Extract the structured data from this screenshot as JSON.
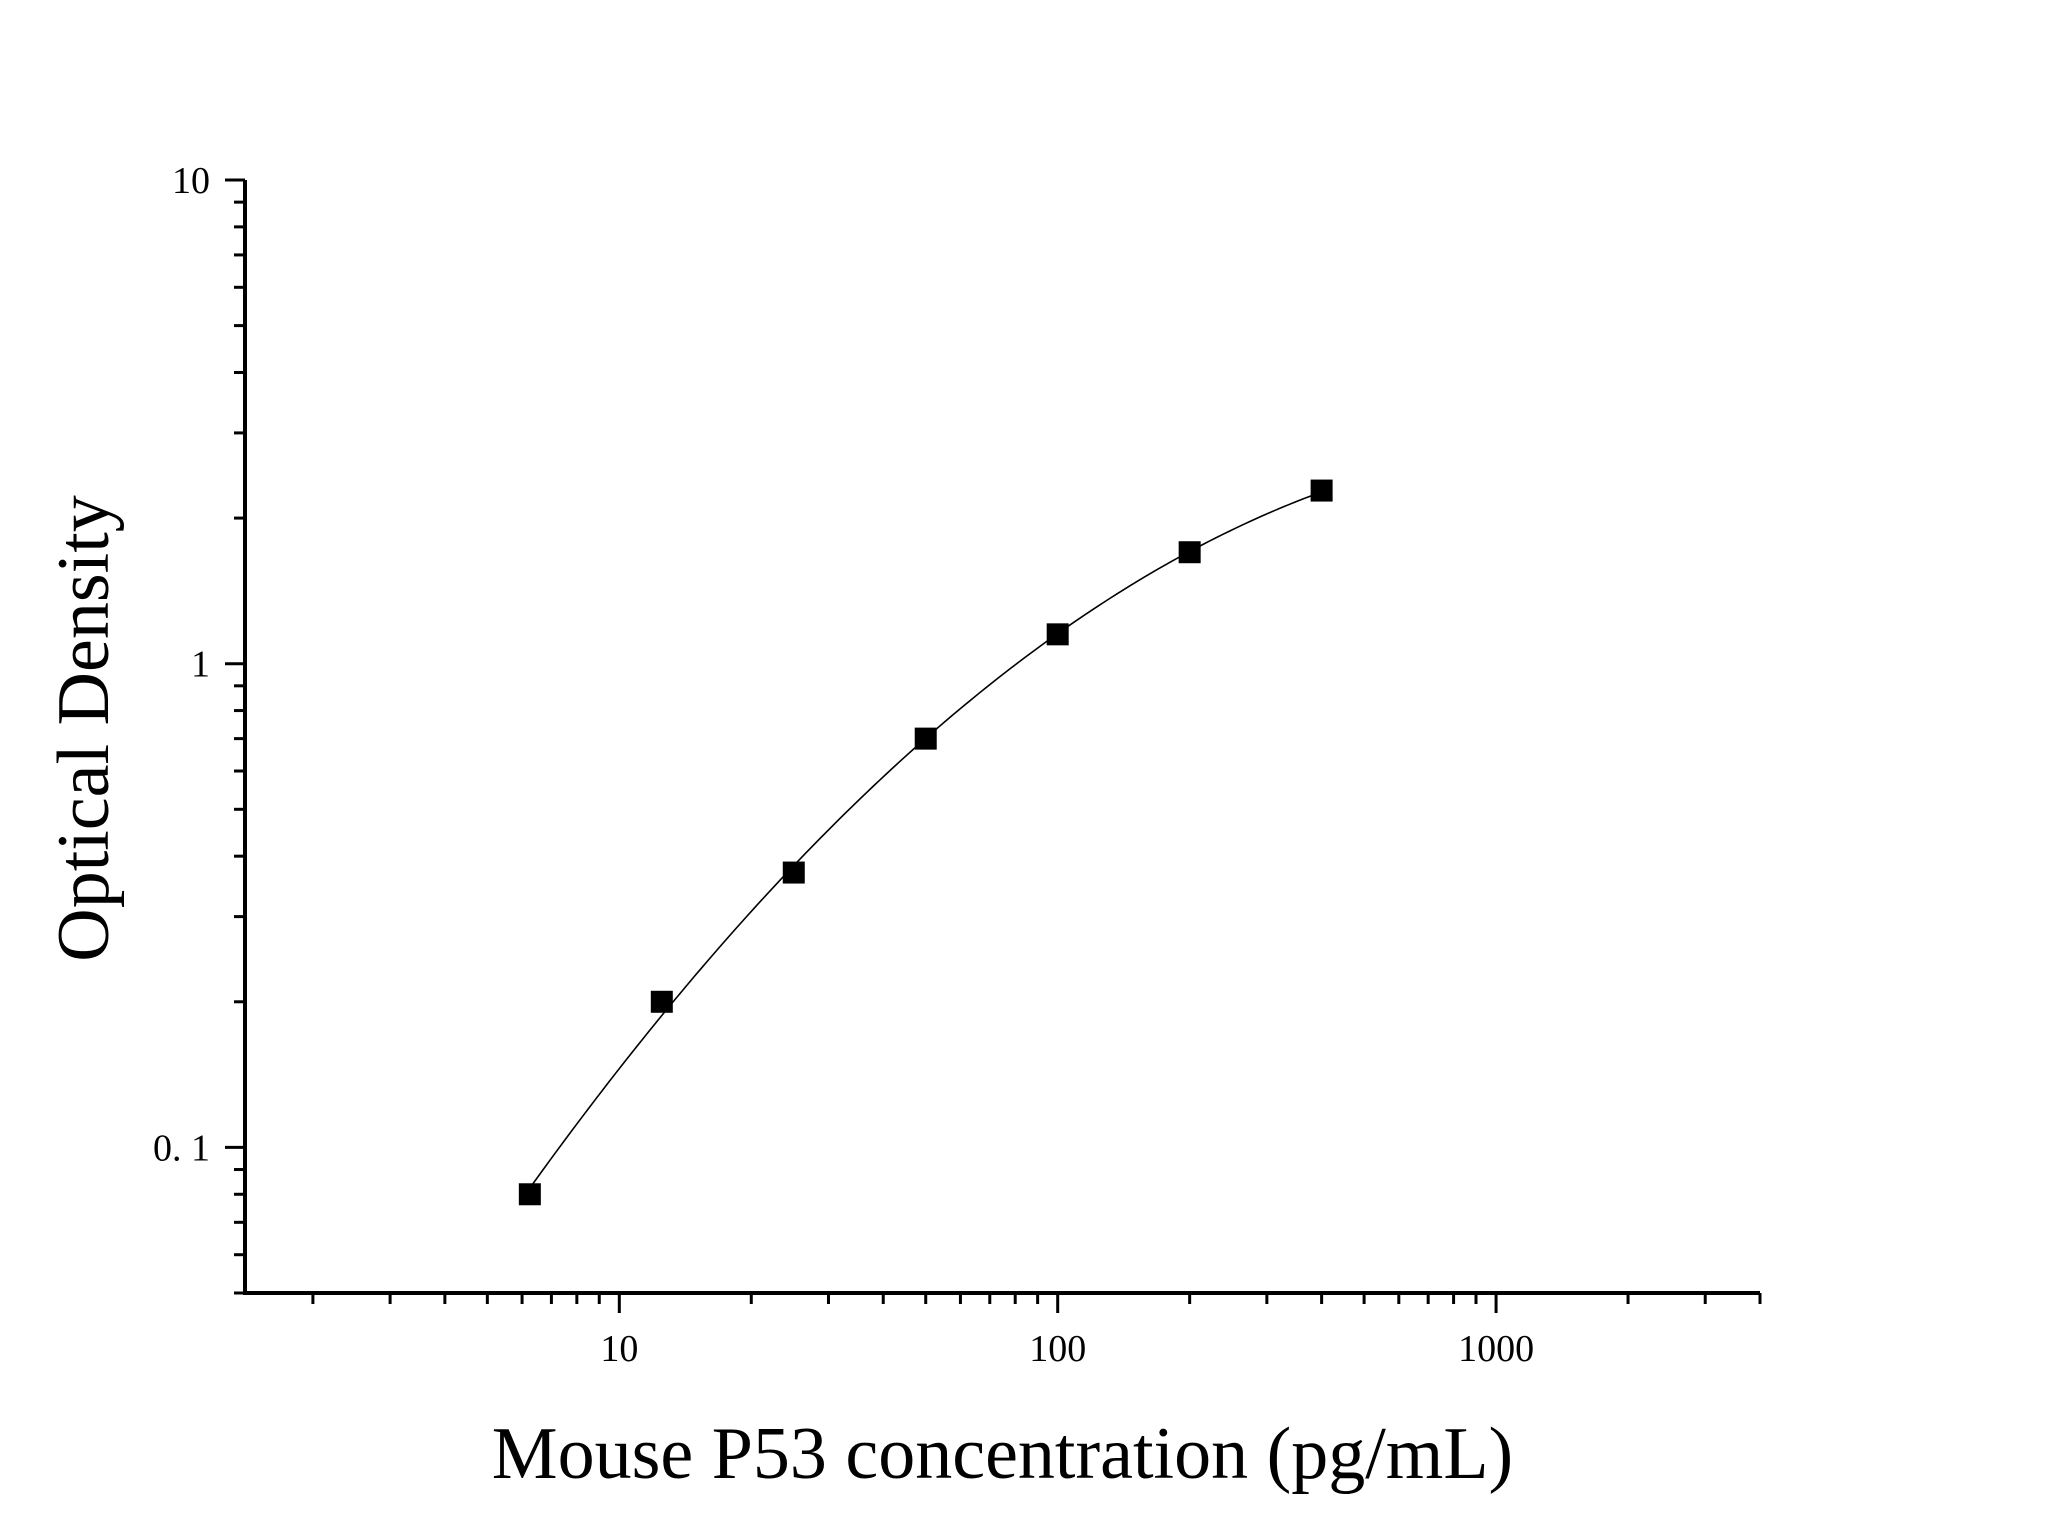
{
  "chart_data": {
    "type": "scatter",
    "title": "",
    "xlabel": "Mouse P53 concentration (pg/mL)",
    "ylabel": "Optical Density",
    "x_scale": "log",
    "y_scale": "log",
    "xlim": [
      1.4,
      4000
    ],
    "ylim": [
      0.05,
      10
    ],
    "x_tick_labels": [
      "10",
      "100",
      "1000"
    ],
    "y_tick_labels": [
      "0. 1",
      "1",
      "10"
    ],
    "grid": false,
    "legend": "none",
    "marker": "square",
    "marker_color": "#000000",
    "fit_curve": true,
    "series": [
      {
        "x": [
          6.25,
          12.5,
          25,
          50,
          100,
          200,
          400
        ],
        "y": [
          0.08,
          0.2,
          0.37,
          0.7,
          1.15,
          1.7,
          2.28
        ]
      }
    ]
  }
}
